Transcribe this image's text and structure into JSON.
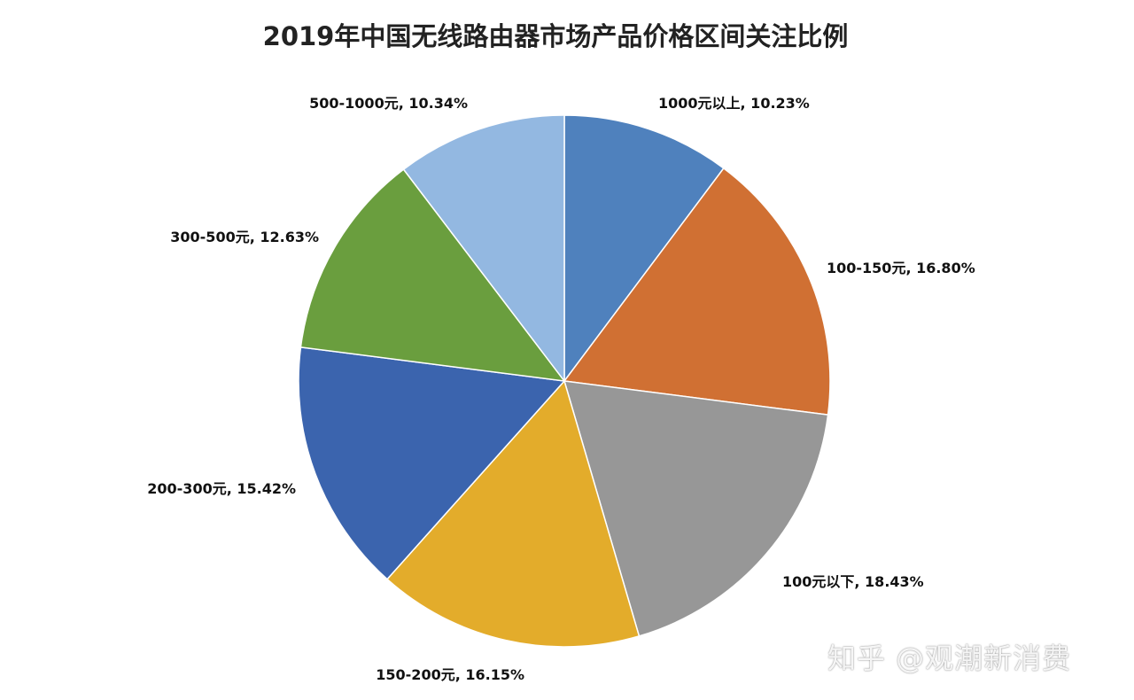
{
  "chart_data": {
    "type": "pie",
    "title": "2019年中国无线路由器市场产品价格区间关注比例",
    "slices": [
      {
        "label": "1000元以上",
        "value": 10.23,
        "display": "1000元以上, 10.23%",
        "color": "#4f81bd"
      },
      {
        "label": "100-150元",
        "value": 16.8,
        "display": "100-150元, 16.80%",
        "color": "#d07033"
      },
      {
        "label": "100元以下",
        "value": 18.43,
        "display": "100元以下, 18.43%",
        "color": "#979797"
      },
      {
        "label": "150-200元",
        "value": 16.15,
        "display": "150-200元, 16.15%",
        "color": "#e3ac2b"
      },
      {
        "label": "200-300元",
        "value": 15.42,
        "display": "200-300元, 15.42%",
        "color": "#3b64ae"
      },
      {
        "label": "300-500元",
        "value": 12.63,
        "display": "300-500元, 12.63%",
        "color": "#6a9e3e"
      },
      {
        "label": "500-1000元",
        "value": 10.34,
        "display": "500-1000元, 10.34%",
        "color": "#93b8e1"
      }
    ],
    "start_angle": "12 o'clock",
    "direction": "clockwise",
    "legend": "none"
  },
  "watermark": "知乎 @观潮新消费"
}
